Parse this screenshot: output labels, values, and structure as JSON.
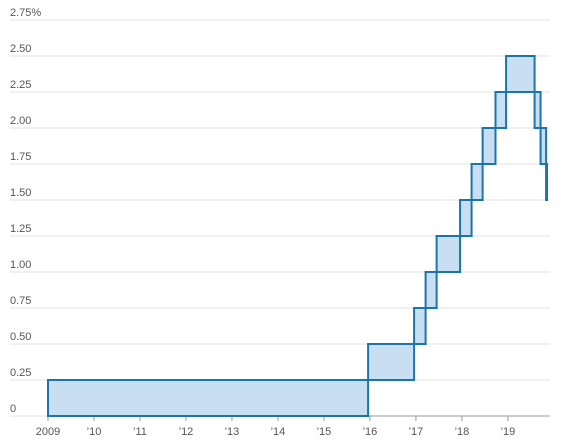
{
  "chart_data": {
    "type": "step",
    "x": [
      2009,
      2015.96,
      2016.96,
      2017.21,
      2017.45,
      2017.96,
      2018.21,
      2018.45,
      2018.73,
      2018.96,
      2019.58,
      2019.71,
      2019.83
    ],
    "series": [
      {
        "color": "#1b75a9",
        "values": [
          0,
          0.25,
          0.5,
          0.75,
          1,
          1.25,
          1.5,
          1.75,
          2,
          2.25,
          2,
          1.75,
          1.5
        ]
      },
      {
        "color": "#1b75a9",
        "values": [
          0.25,
          0.5,
          0.75,
          1,
          1.25,
          1.5,
          1.75,
          2,
          2.25,
          2.5,
          2.25,
          2,
          1.75
        ]
      }
    ],
    "fill": "#c8dff3",
    "xlim": [
      2009,
      2019.85
    ],
    "xticks": [
      {
        "value": 2009,
        "label": "2009"
      },
      {
        "value": 2010,
        "label": "’10"
      },
      {
        "value": 2011,
        "label": "’11"
      },
      {
        "value": 2012,
        "label": "’12"
      },
      {
        "value": 2013,
        "label": "’13"
      },
      {
        "value": 2014,
        "label": "’14"
      },
      {
        "value": 2015,
        "label": "’15"
      },
      {
        "value": 2016,
        "label": "’16"
      },
      {
        "value": 2017,
        "label": "’17"
      },
      {
        "value": 2018,
        "label": "’18"
      },
      {
        "value": 2019,
        "label": "’19"
      }
    ],
    "ylim": [
      0,
      2.75
    ],
    "yticks": [
      0,
      0.25,
      {
        "value": 0.5,
        "label": "0.50"
      },
      0.75,
      {
        "value": 1,
        "label": "1.00"
      },
      1.25,
      {
        "value": 1.5,
        "label": "1.50"
      },
      1.75,
      {
        "value": 2,
        "label": "2.00"
      },
      2.25,
      {
        "value": 2.5,
        "label": "2.50"
      },
      {
        "value": 2.75,
        "label": "2.75%"
      }
    ],
    "grid": true
  }
}
